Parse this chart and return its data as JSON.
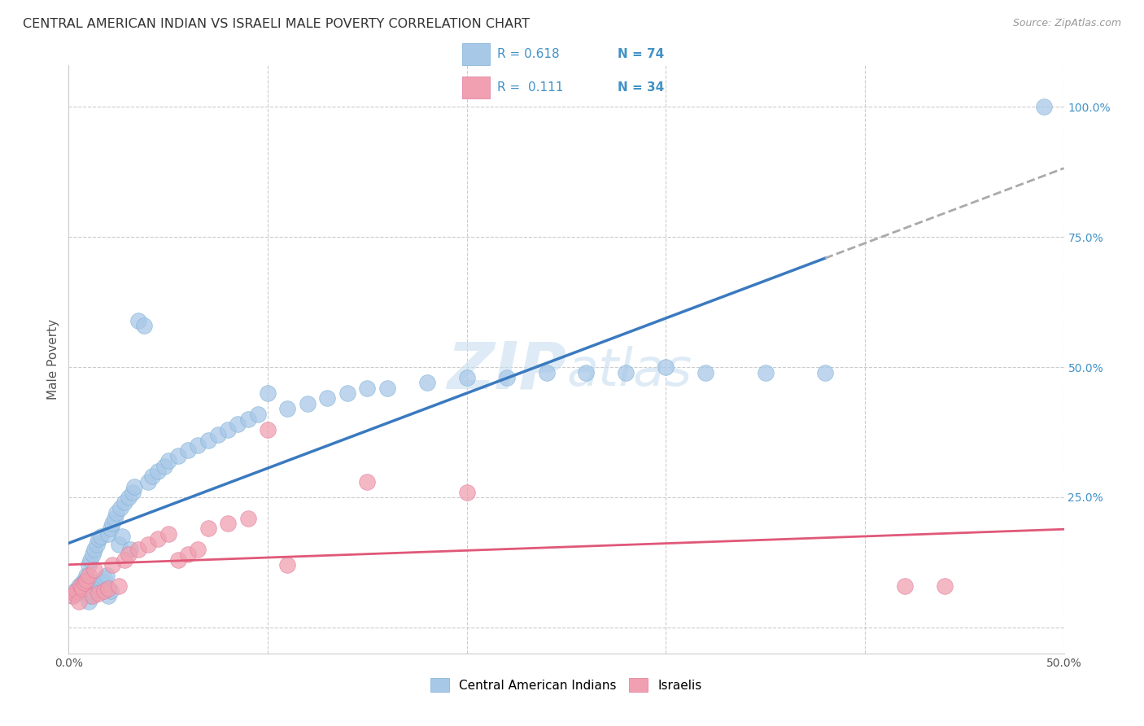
{
  "title": "CENTRAL AMERICAN INDIAN VS ISRAELI MALE POVERTY CORRELATION CHART",
  "source": "Source: ZipAtlas.com",
  "ylabel": "Male Poverty",
  "color_blue": "#a8c8e8",
  "color_blue_edge": "#7bafd4",
  "color_pink": "#f0a0b0",
  "color_pink_edge": "#e07898",
  "color_line_blue": "#3a7abf",
  "color_line_pink": "#e05878",
  "color_line_dashed": "#aaaaaa",
  "watermark_color": "#c8dff0",
  "xmin": 0.0,
  "xmax": 0.5,
  "ymin": -0.05,
  "ymax": 1.08,
  "blue_x": [
    0.002,
    0.003,
    0.004,
    0.005,
    0.006,
    0.007,
    0.008,
    0.009,
    0.01,
    0.01,
    0.011,
    0.011,
    0.012,
    0.012,
    0.013,
    0.013,
    0.014,
    0.014,
    0.015,
    0.015,
    0.016,
    0.016,
    0.017,
    0.018,
    0.019,
    0.02,
    0.02,
    0.021,
    0.021,
    0.022,
    0.023,
    0.024,
    0.025,
    0.026,
    0.027,
    0.028,
    0.03,
    0.031,
    0.032,
    0.033,
    0.035,
    0.038,
    0.04,
    0.042,
    0.045,
    0.048,
    0.05,
    0.055,
    0.06,
    0.065,
    0.07,
    0.075,
    0.08,
    0.085,
    0.09,
    0.095,
    0.1,
    0.11,
    0.12,
    0.13,
    0.14,
    0.15,
    0.16,
    0.18,
    0.2,
    0.22,
    0.24,
    0.26,
    0.28,
    0.3,
    0.32,
    0.35,
    0.38,
    0.49
  ],
  "blue_y": [
    0.06,
    0.07,
    0.065,
    0.08,
    0.075,
    0.085,
    0.09,
    0.1,
    0.05,
    0.12,
    0.06,
    0.13,
    0.07,
    0.14,
    0.065,
    0.15,
    0.075,
    0.16,
    0.08,
    0.17,
    0.085,
    0.175,
    0.09,
    0.095,
    0.1,
    0.06,
    0.18,
    0.07,
    0.19,
    0.2,
    0.21,
    0.22,
    0.16,
    0.23,
    0.175,
    0.24,
    0.25,
    0.15,
    0.26,
    0.27,
    0.59,
    0.58,
    0.28,
    0.29,
    0.3,
    0.31,
    0.32,
    0.33,
    0.34,
    0.35,
    0.36,
    0.37,
    0.38,
    0.39,
    0.4,
    0.41,
    0.45,
    0.42,
    0.43,
    0.44,
    0.45,
    0.46,
    0.46,
    0.47,
    0.48,
    0.48,
    0.49,
    0.49,
    0.49,
    0.5,
    0.49,
    0.49,
    0.49,
    1.0
  ],
  "pink_x": [
    0.002,
    0.003,
    0.004,
    0.005,
    0.006,
    0.007,
    0.008,
    0.009,
    0.01,
    0.012,
    0.013,
    0.015,
    0.018,
    0.02,
    0.022,
    0.025,
    0.028,
    0.03,
    0.035,
    0.04,
    0.045,
    0.05,
    0.055,
    0.06,
    0.065,
    0.07,
    0.08,
    0.09,
    0.1,
    0.11,
    0.15,
    0.2,
    0.42,
    0.44
  ],
  "pink_y": [
    0.06,
    0.065,
    0.07,
    0.05,
    0.08,
    0.075,
    0.085,
    0.09,
    0.1,
    0.06,
    0.11,
    0.065,
    0.07,
    0.075,
    0.12,
    0.08,
    0.13,
    0.14,
    0.15,
    0.16,
    0.17,
    0.18,
    0.13,
    0.14,
    0.15,
    0.19,
    0.2,
    0.21,
    0.38,
    0.12,
    0.28,
    0.26,
    0.08,
    0.08
  ],
  "blue_line_x0": 0.0,
  "blue_line_x_solid_end": 0.38,
  "blue_line_x1": 0.5,
  "pink_line_x0": 0.0,
  "pink_line_x1": 0.5
}
